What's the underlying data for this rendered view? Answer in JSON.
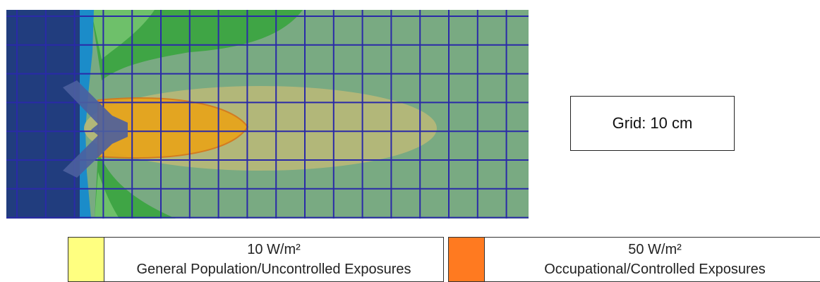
{
  "grid_label": "Grid: 10 cm",
  "legend": [
    {
      "value": "10 W/m²",
      "label": "General Population/Uncontrolled Exposures",
      "color": "#ffff80"
    },
    {
      "value": "50 W/m²",
      "label": "Occupational/Controlled Exposures",
      "color": "#ff7a20"
    }
  ],
  "colors": {
    "wall_dark": "#213d7e",
    "wall_light": "#1b8cc9",
    "low_field_green": "#3a9e3c",
    "mid_field_green": "#79aa82",
    "grid_lines": "#2a2aa8",
    "yellow_zone": "#b8b878",
    "orange_zone": "#e8a41a",
    "antenna": "#4b5f9e"
  }
}
